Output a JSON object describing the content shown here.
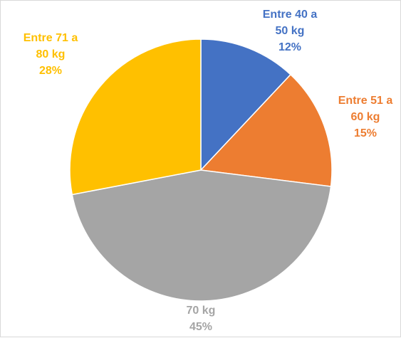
{
  "chart_data": {
    "type": "pie",
    "title": "",
    "slices": [
      {
        "label_lines": [
          "Entre 40 a",
          "50 kg"
        ],
        "percent_label": "12%",
        "value": 12,
        "color": "#4472C4"
      },
      {
        "label_lines": [
          "Entre 51 a",
          "60 kg"
        ],
        "percent_label": "15%",
        "value": 15,
        "color": "#ED7D31"
      },
      {
        "label_lines": [
          "70 kg"
        ],
        "percent_label": "45%",
        "value": 45,
        "color": "#A5A5A5"
      },
      {
        "label_lines": [
          "Entre 71 a",
          "80 kg"
        ],
        "percent_label": "28%",
        "value": 28,
        "color": "#FFC000"
      }
    ],
    "legend": "none",
    "start_angle": "top",
    "direction": "clockwise"
  }
}
